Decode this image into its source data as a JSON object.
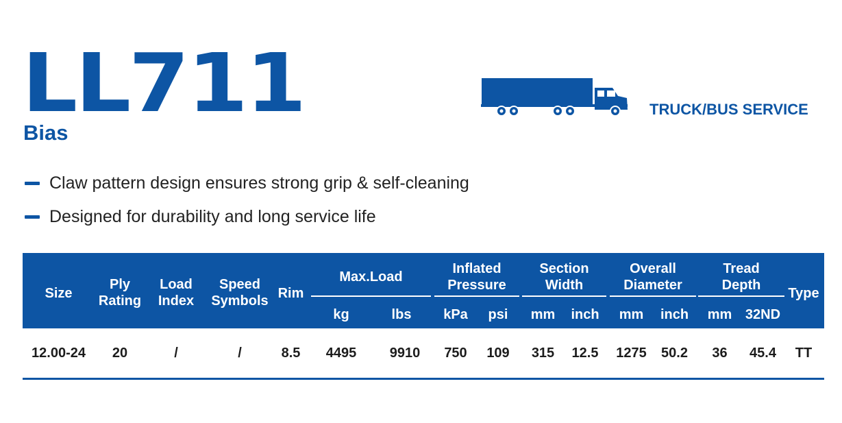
{
  "title": "LL711",
  "subtitle": "Bias",
  "service": "TRUCK/BUS SERVICE",
  "icons": {
    "vehicle": "truck-icon",
    "bullet": "dash-bullet-icon"
  },
  "colors": {
    "brand": "#0d55a4",
    "text": "#1c1c1c",
    "header_text": "#ffffff"
  },
  "features": [
    "Claw pattern design ensures strong grip & self-cleaning",
    "Designed for durability and long service life"
  ],
  "table": {
    "headers": {
      "size": "Size",
      "ply_rating": [
        "Ply",
        "Rating"
      ],
      "load_index": [
        "Load",
        "Index"
      ],
      "speed_symbols": [
        "Speed",
        "Symbols"
      ],
      "rim": "Rim",
      "max_load": {
        "label": "Max.Load",
        "units": [
          "kg",
          "lbs"
        ]
      },
      "inflated_pressure": {
        "label": [
          "Inflated",
          "Pressure"
        ],
        "units": [
          "kPa",
          "psi"
        ]
      },
      "section_width": {
        "label": [
          "Section",
          "Width"
        ],
        "units": [
          "mm",
          "inch"
        ]
      },
      "overall_diameter": {
        "label": [
          "Overall",
          "Diameter"
        ],
        "units": [
          "mm",
          "inch"
        ]
      },
      "tread_depth": {
        "label": [
          "Tread",
          "Depth"
        ],
        "units": [
          "mm",
          "32ND"
        ]
      },
      "type": "Type"
    },
    "rows": [
      [
        "12.00-24",
        "20",
        "/",
        "/",
        "8.5",
        "4495",
        "9910",
        "750",
        "109",
        "315",
        "12.5",
        "1275",
        "50.2",
        "36",
        "45.4",
        "TT"
      ]
    ]
  }
}
